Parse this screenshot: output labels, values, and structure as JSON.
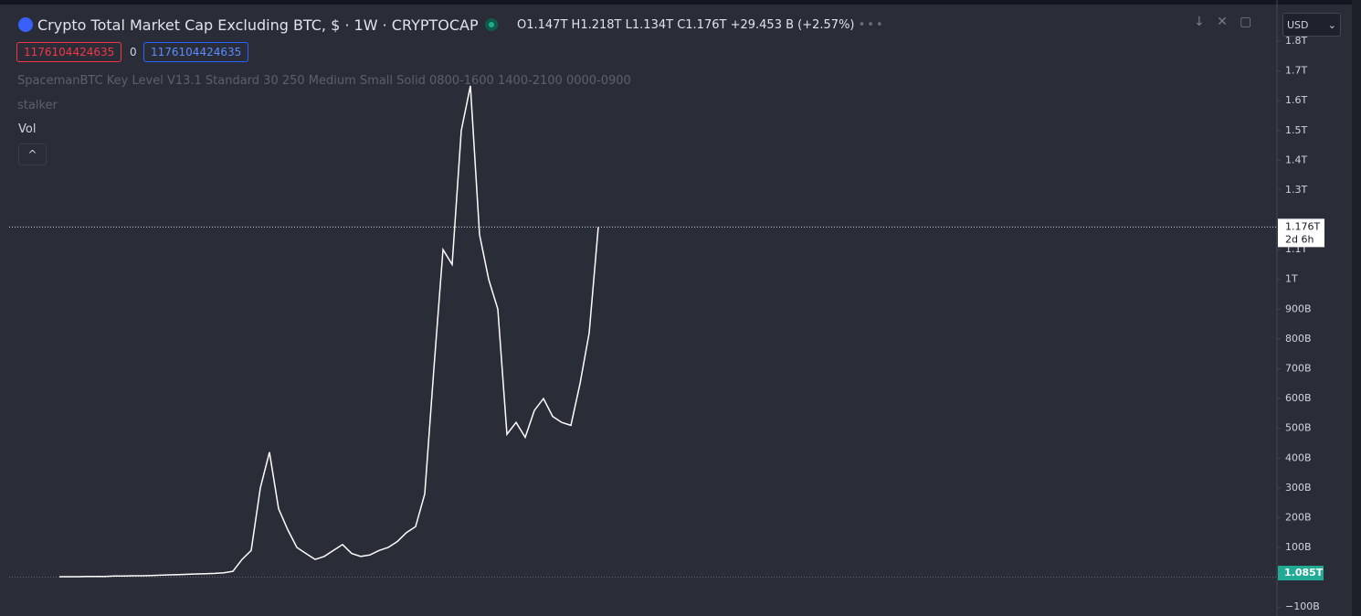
{
  "header": {
    "title": "Crypto Total Market Cap Excluding BTC, $ · 1W · CRYPTOCAP",
    "open_label": "O",
    "open": "1.147T",
    "high_label": "H",
    "high": "1.218T",
    "low_label": "L",
    "low": "1.134T",
    "close_label": "C",
    "close": "1.176T",
    "change": "+29.453 B (+2.57%)",
    "currency": "USD"
  },
  "badges": [
    "1176104424635",
    "0",
    "1176104424635"
  ],
  "indicators": [
    "SpacemanBTC Key Level V13.1 Standard 30 250 Medium Small Solid 0800-1600 1400-2100 0000-0900",
    "stalker",
    "Vol"
  ],
  "chart_data": {
    "type": "line",
    "color": "#ffffff",
    "values": [
      2,
      2,
      2,
      3,
      3,
      3,
      4,
      4,
      5,
      5,
      6,
      7,
      8,
      9,
      10,
      11,
      12,
      13,
      15,
      20,
      60,
      90,
      300,
      420,
      230,
      160,
      100,
      80,
      60,
      70,
      90,
      110,
      80,
      70,
      75,
      90,
      100,
      120,
      150,
      170,
      280,
      700,
      1100,
      1050,
      1500,
      1650,
      1150,
      1000,
      900,
      480,
      520,
      470,
      560,
      600,
      540,
      520,
      510,
      650,
      820,
      1176
    ],
    "ylim": [
      -130,
      1800
    ],
    "yticks": [
      {
        "value": 1800,
        "label": "1.8T"
      },
      {
        "value": 1700,
        "label": "1.7T"
      },
      {
        "value": 1600,
        "label": "1.6T"
      },
      {
        "value": 1500,
        "label": "1.5T"
      },
      {
        "value": 1400,
        "label": "1.4T"
      },
      {
        "value": 1300,
        "label": "1.3T"
      },
      {
        "value": 1100,
        "label": "1.1T"
      },
      {
        "value": 1000,
        "label": "1T"
      },
      {
        "value": 900,
        "label": "900B"
      },
      {
        "value": 800,
        "label": "800B"
      },
      {
        "value": 700,
        "label": "700B"
      },
      {
        "value": 600,
        "label": "600B"
      },
      {
        "value": 500,
        "label": "500B"
      },
      {
        "value": 400,
        "label": "400B"
      },
      {
        "value": 300,
        "label": "300B"
      },
      {
        "value": 200,
        "label": "200B"
      },
      {
        "value": 100,
        "label": "100B"
      },
      {
        "value": -100,
        "label": "−100B"
      }
    ],
    "last_price": {
      "value": 1176,
      "label": "1.176T"
    },
    "countdown": "2d 6h",
    "volume_label": "1.085T"
  }
}
